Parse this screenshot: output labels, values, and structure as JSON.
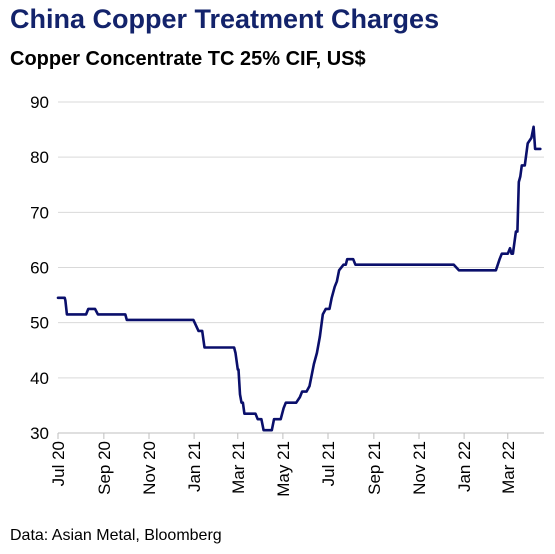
{
  "header": {
    "title": "China Copper Treatment Charges",
    "subtitle": "Copper Concentrate TC 25% CIF, US$"
  },
  "footer": {
    "source": "Data: Asian Metal, Bloomberg"
  },
  "colors": {
    "title": "#13236b",
    "series": "#0a0f6b",
    "grid": "#d9d9d9"
  },
  "chart_data": {
    "type": "line",
    "title": "China Copper Treatment Charges",
    "subtitle": "Copper Concentrate TC 25% CIF, US$",
    "xlabel": "",
    "ylabel": "",
    "ylim": [
      30,
      90
    ],
    "yticks": [
      30,
      40,
      50,
      60,
      70,
      80,
      90
    ],
    "xlim": [
      "2020-07-01",
      "2022-04-19"
    ],
    "xticks": [
      {
        "date": "2020-07-01",
        "label": "Jul 20"
      },
      {
        "date": "2020-09-01",
        "label": "Sep 20"
      },
      {
        "date": "2020-11-01",
        "label": "Nov 20"
      },
      {
        "date": "2021-01-01",
        "label": "Jan 21"
      },
      {
        "date": "2021-03-01",
        "label": "Mar 21"
      },
      {
        "date": "2021-05-01",
        "label": "May 21"
      },
      {
        "date": "2021-07-01",
        "label": "Jul 21"
      },
      {
        "date": "2021-09-01",
        "label": "Sep 21"
      },
      {
        "date": "2021-11-01",
        "label": "Nov 21"
      },
      {
        "date": "2022-01-01",
        "label": "Jan 22"
      },
      {
        "date": "2022-03-01",
        "label": "Mar 22"
      }
    ],
    "grid": true,
    "legend": "none",
    "series": [
      {
        "x": [
          "2020-07-01",
          "2020-07-10",
          "2020-07-11",
          "2020-07-13",
          "2020-08-08",
          "2020-08-11",
          "2020-08-20",
          "2020-08-24",
          "2020-09-30",
          "2020-10-02",
          "2020-12-31",
          "2021-01-07",
          "2021-01-12",
          "2021-01-15",
          "2021-02-24",
          "2021-02-26",
          "2021-03-01",
          "2021-03-02",
          "2021-03-04",
          "2021-03-06",
          "2021-03-08",
          "2021-03-10",
          "2021-03-13",
          "2021-03-25",
          "2021-03-28",
          "2021-04-02",
          "2021-04-05",
          "2021-04-10",
          "2021-04-16",
          "2021-04-19",
          "2021-04-26",
          "2021-04-28",
          "2021-05-02",
          "2021-05-05",
          "2021-05-12",
          "2021-05-16",
          "2021-05-19",
          "2021-05-24",
          "2021-05-27",
          "2021-06-02",
          "2021-06-06",
          "2021-06-09",
          "2021-06-12",
          "2021-06-16",
          "2021-06-20",
          "2021-06-24",
          "2021-06-28",
          "2021-07-01",
          "2021-07-03",
          "2021-07-06",
          "2021-07-08",
          "2021-07-10",
          "2021-07-13",
          "2021-07-16",
          "2021-07-22",
          "2021-07-25",
          "2021-07-27",
          "2021-07-29",
          "2021-08-01",
          "2021-08-04",
          "2021-08-07",
          "2021-08-12",
          "2021-08-15",
          "2021-08-20",
          "2021-08-29",
          "2021-09-04",
          "2021-09-06",
          "2021-12-18",
          "2021-12-25",
          "2022-02-08",
          "2022-02-13",
          "2022-02-18",
          "2022-02-21",
          "2022-02-26",
          "2022-03-01",
          "2022-03-04",
          "2022-03-06",
          "2022-03-08",
          "2022-03-10",
          "2022-03-12",
          "2022-03-14",
          "2022-03-16",
          "2022-03-18",
          "2022-03-20",
          "2022-03-24",
          "2022-03-28",
          "2022-04-02",
          "2022-04-05",
          "2022-04-07",
          "2022-04-09",
          "2022-04-11",
          "2022-04-13",
          "2022-04-14"
        ],
        "y": [
          54.5,
          54.5,
          54,
          51.5,
          51.5,
          52.5,
          52.5,
          51.5,
          51.5,
          50.5,
          50.5,
          48.5,
          48.5,
          45.5,
          45.5,
          44.5,
          41.5,
          41.5,
          37,
          35.5,
          35.5,
          33.5,
          33.5,
          33.5,
          32.5,
          32.5,
          30.5,
          30.5,
          30.5,
          32.5,
          32.5,
          32.5,
          34.5,
          35.5,
          35.5,
          35.5,
          35.5,
          36.5,
          37.5,
          37.5,
          38.5,
          40.5,
          42.5,
          44.5,
          47.5,
          51.5,
          52.5,
          52.5,
          52.5,
          54.5,
          55.5,
          56.5,
          57.5,
          59.5,
          60.5,
          60.5,
          61.5,
          61.5,
          61.5,
          61.5,
          60.5,
          60.5,
          60.5,
          60.5,
          60.5,
          60.5,
          60.5,
          60.5,
          59.5,
          59.5,
          59.5,
          61.5,
          62.5,
          62.5,
          62.5,
          63.5,
          62.5,
          62.5,
          64.5,
          66.5,
          66.5,
          75.5,
          76.5,
          78.5,
          78.5,
          82.5,
          83.5,
          85.5,
          81.5,
          81.5,
          81.5,
          81.5,
          81.5
        ]
      }
    ]
  }
}
